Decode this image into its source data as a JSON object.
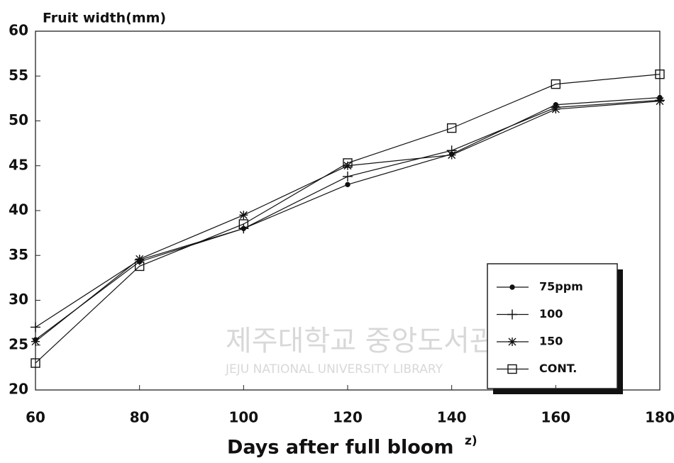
{
  "chart_data": {
    "type": "line",
    "y_label": "Fruit width(mm)",
    "x_label": "Days after full bloom",
    "x_label_superscript": "z)",
    "watermark": [
      "제주대학교 중앙도서관",
      "JEJU NATIONAL UNIVERSITY LIBRARY"
    ],
    "x": [
      60,
      80,
      100,
      120,
      140,
      160,
      180
    ],
    "xlim": [
      60,
      180
    ],
    "xticks": [
      60,
      80,
      100,
      120,
      140,
      160,
      180
    ],
    "ylim": [
      20,
      60
    ],
    "yticks": [
      20,
      25,
      30,
      35,
      40,
      45,
      50,
      55,
      60
    ],
    "legend": "lower right",
    "series": [
      {
        "name": "75ppm",
        "color": "#111111",
        "marker": "dot",
        "values": [
          25.6,
          34.3,
          38.0,
          42.9,
          46.3,
          51.8,
          52.6
        ]
      },
      {
        "name": "100",
        "color": "#111111",
        "marker": "plus",
        "values": [
          27.0,
          34.5,
          38.0,
          43.8,
          46.7,
          51.5,
          52.3
        ]
      },
      {
        "name": "150",
        "color": "#111111",
        "marker": "star",
        "values": [
          25.4,
          34.6,
          39.5,
          45.0,
          46.2,
          51.3,
          52.2
        ]
      },
      {
        "name": "CONT.",
        "color": "#111111",
        "marker": "square",
        "values": [
          23.0,
          33.8,
          38.5,
          45.3,
          49.2,
          54.1,
          55.2
        ]
      }
    ]
  }
}
